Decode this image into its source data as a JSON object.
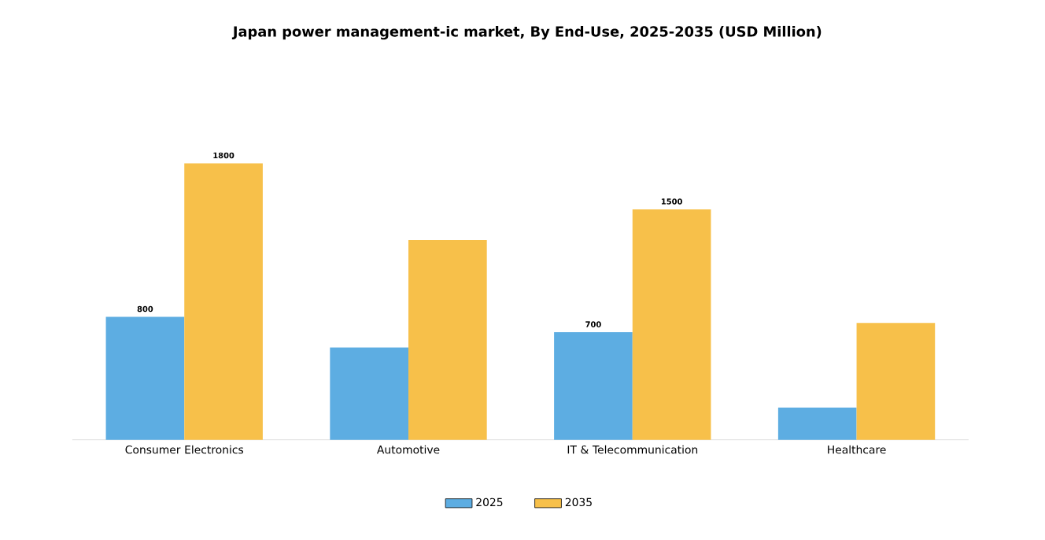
{
  "chart_data": {
    "type": "bar",
    "title": "Japan power management-ic market, By End-Use, 2025-2035 (USD Million)",
    "categories": [
      "Consumer Electronics",
      "Automotive",
      "IT & Telecommunication",
      "Healthcare"
    ],
    "series": [
      {
        "name": "2025",
        "color": "#5dade2",
        "values": [
          800,
          600,
          700,
          210
        ],
        "value_labels": [
          "800",
          null,
          "700",
          null
        ]
      },
      {
        "name": "2035",
        "color": "#f7c04a",
        "values": [
          1800,
          1300,
          1500,
          760
        ],
        "value_labels": [
          "1800",
          null,
          "1500",
          null
        ]
      }
    ],
    "legend": "bottom"
  }
}
